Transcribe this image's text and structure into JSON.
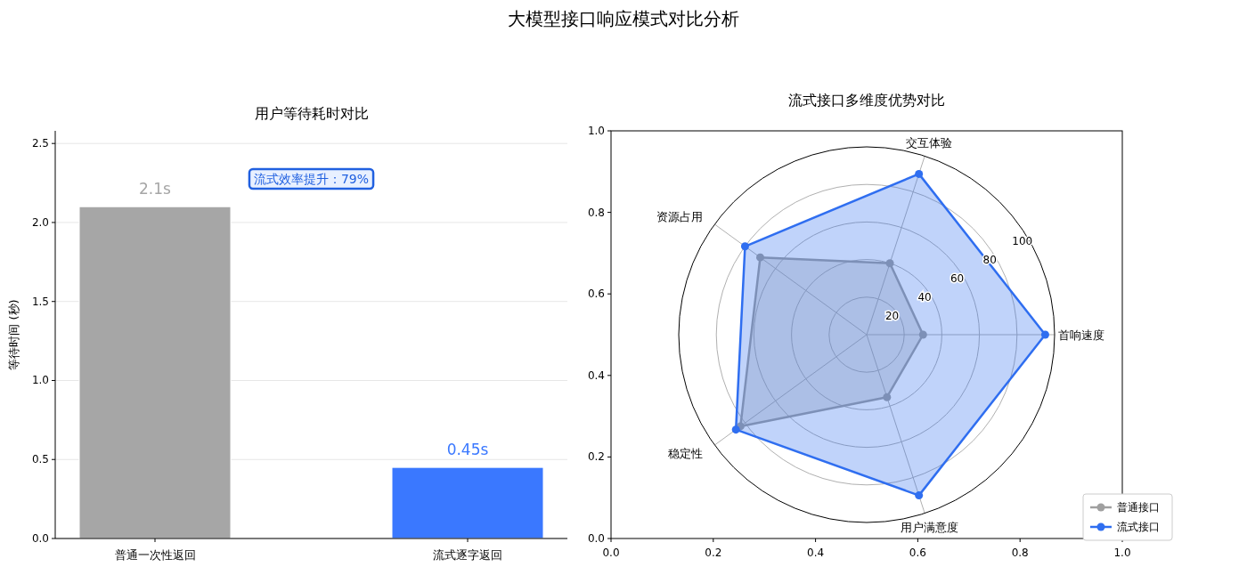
{
  "chart_data": [
    {
      "type": "bar",
      "title": "大模型接口响应模式对比分析",
      "subtitle": "用户等待耗时对比",
      "ylabel": "等待时间 (秒)",
      "categories": [
        "普通一次性返回",
        "流式逐字返回"
      ],
      "values": [
        2.1,
        0.45
      ],
      "colors": [
        "#a6a6a6",
        "#3a78ff"
      ],
      "value_labels": [
        "2.1s",
        "0.45s"
      ],
      "annotations": [
        "流式效率提升：79%"
      ],
      "ylim": [
        0,
        2.58
      ],
      "yticks": [
        {
          "value": 0,
          "label": "0.0"
        },
        {
          "value": 0.5,
          "label": "0.5"
        },
        {
          "value": 1,
          "label": "1.0"
        },
        {
          "value": 1.5,
          "label": "1.5"
        },
        {
          "value": 2,
          "label": "2.0"
        },
        {
          "value": 2.5,
          "label": "2.5"
        }
      ],
      "grid": "y"
    },
    {
      "type": "radar",
      "title": "流式接口多维度优势对比",
      "categories": [
        "交互体验",
        "首响速度",
        "用户满意度",
        "稳定性",
        "资源占用"
      ],
      "series": [
        {
          "name": "普通接口",
          "color": "#a0a0a0",
          "values": [
            40,
            30,
            35,
            83,
            70
          ]
        },
        {
          "name": "流式接口",
          "color": "#2f6ef0",
          "values": [
            90,
            95,
            90,
            86,
            80
          ]
        }
      ],
      "ylim": [
        0,
        100
      ],
      "yticks": [
        20,
        40,
        60,
        80,
        100
      ],
      "grid": true,
      "marker": "circle",
      "legend": "bottom right"
    },
    {
      "type": "scatter",
      "xlim": [
        0,
        1
      ],
      "ylim": [
        0,
        1
      ],
      "xticks": [
        {
          "value": 0,
          "label": "0.0"
        },
        {
          "value": 0.2,
          "label": "0.2"
        },
        {
          "value": 0.4,
          "label": "0.4"
        },
        {
          "value": 0.6,
          "label": "0.6"
        },
        {
          "value": 0.8,
          "label": "0.8"
        },
        {
          "value": 1,
          "label": "1.0"
        }
      ],
      "yticks": [
        {
          "value": 0,
          "label": "0.0"
        },
        {
          "value": 0.2,
          "label": "0.2"
        },
        {
          "value": 0.4,
          "label": "0.4"
        },
        {
          "value": 0.6,
          "label": "0.6"
        },
        {
          "value": 0.8,
          "label": "0.8"
        },
        {
          "value": 1,
          "label": "1.0"
        }
      ]
    }
  ]
}
